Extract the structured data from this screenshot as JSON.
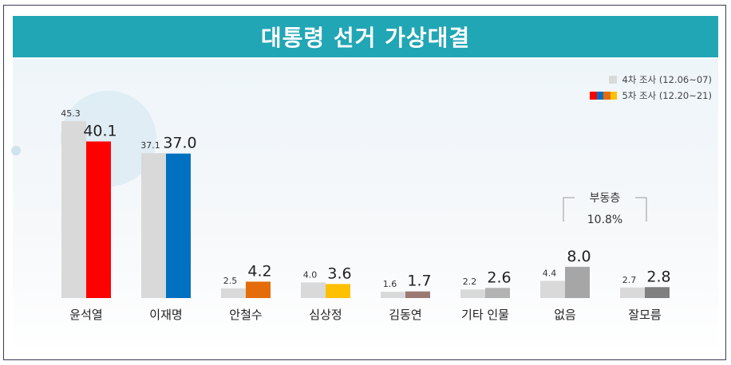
{
  "title": "대통령 선거 가상대결",
  "legend": {
    "s1": "4차 조사 (12.06~07)",
    "s2": "5차 조사 (12.20~21)"
  },
  "annotation": {
    "label": "부동층",
    "value": "10.8%"
  },
  "colors": {
    "title_bg": "#21a6b5",
    "series1": "#d9d9d9",
    "series2_bars": [
      "#ff0000",
      "#0070c0",
      "#e46c0a",
      "#ffc000",
      "#9c7a74",
      "#b3b3b3",
      "#a6a6a6",
      "#808080"
    ]
  },
  "chart_data": {
    "type": "bar",
    "title": "대통령 선거 가상대결",
    "categories": [
      "윤석열",
      "이재명",
      "안철수",
      "심상정",
      "김동연",
      "기타 인물",
      "없음",
      "잘모름"
    ],
    "series": [
      {
        "name": "4차 조사 (12.06~07)",
        "values": [
          45.3,
          37.1,
          2.5,
          4.0,
          1.6,
          2.2,
          4.4,
          2.7
        ]
      },
      {
        "name": "5차 조사 (12.20~21)",
        "values": [
          40.1,
          37.0,
          4.2,
          3.6,
          1.7,
          2.6,
          8.0,
          2.8
        ]
      }
    ],
    "value_labels_s1": [
      "45.3",
      "37.1",
      "2.5",
      "4.0",
      "1.6",
      "2.2",
      "4.4",
      "2.7"
    ],
    "value_labels_s2": [
      "40.1",
      "37.0",
      "4.2",
      "3.6",
      "1.7",
      "2.6",
      "8.0",
      "2.8"
    ],
    "grid": false,
    "legend_position": "top-right"
  }
}
